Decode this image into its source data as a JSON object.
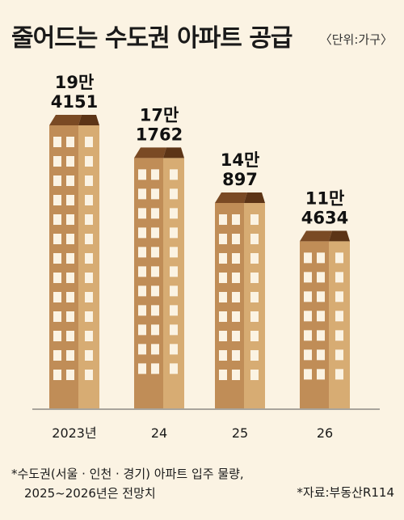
{
  "header": {
    "title": "줄어드는 수도권 아파트 공급",
    "unit": "〈단위:가구〉"
  },
  "footer": {
    "note_line1": "*수도권(서울 · 인천 · 경기) 아파트 입주 물량,",
    "note_line2": "2025~2026년은 전망치",
    "source": "*자료:부동산R114"
  },
  "colors": {
    "background": "#fbf3e3",
    "building_front": "#c08d57",
    "building_side": "#d7ac73",
    "roof_front": "#7a4a24",
    "roof_side": "#5c3416",
    "window": "#fbf3e3",
    "axis": "#555555"
  },
  "chart_data": {
    "type": "bar",
    "title": "줄어드는 수도권 아파트 공급",
    "unit": "가구",
    "categories": [
      "2023년",
      "24",
      "25",
      "26"
    ],
    "values": [
      194151,
      171762,
      140897,
      114634
    ],
    "value_labels": [
      [
        "19만",
        "4151"
      ],
      [
        "17만",
        "1762"
      ],
      [
        "14만",
        "897"
      ],
      [
        "11만",
        "4634"
      ]
    ],
    "bar_style": "building"
  }
}
